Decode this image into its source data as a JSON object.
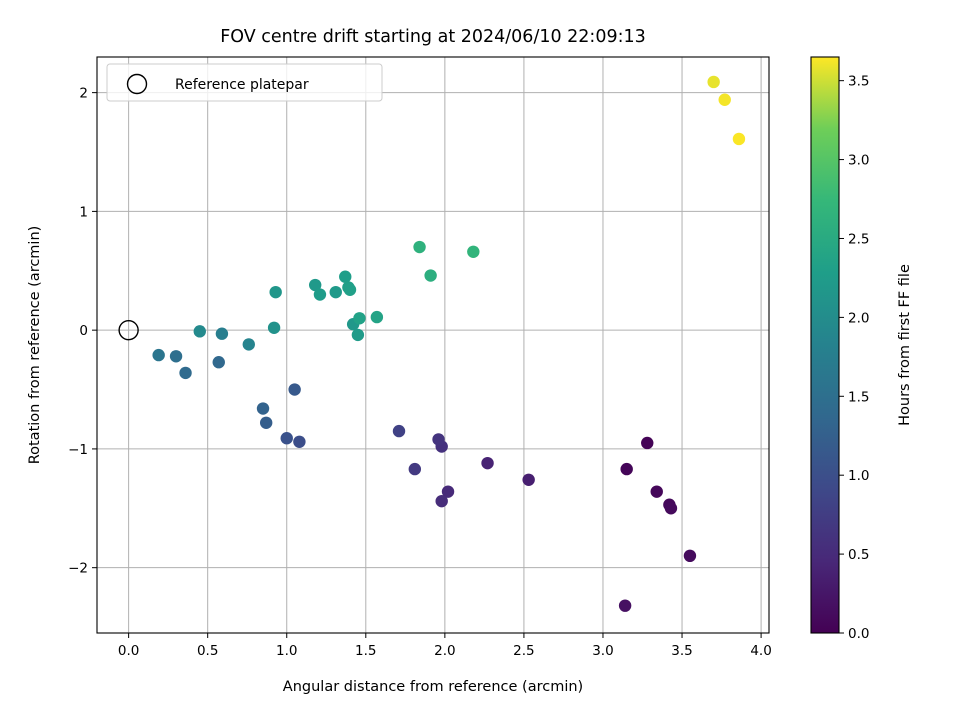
{
  "chart_data": {
    "type": "scatter",
    "title": "FOV centre drift starting at 2024/06/10 22:09:13",
    "xlabel": "Angular distance from reference (arcmin)",
    "ylabel": "Rotation from reference (arcmin)",
    "xlim": [
      -0.2,
      4.05
    ],
    "ylim": [
      -2.55,
      2.3
    ],
    "xticks": [
      0.0,
      0.5,
      1.0,
      1.5,
      2.0,
      2.5,
      3.0,
      3.5,
      4.0
    ],
    "xtick_labels": [
      "0.0",
      "0.5",
      "1.0",
      "1.5",
      "2.0",
      "2.5",
      "3.0",
      "3.5",
      "4.0"
    ],
    "yticks": [
      -2,
      -1,
      0,
      1,
      2
    ],
    "ytick_labels": [
      "−2",
      "−1",
      "0",
      "1",
      "2"
    ],
    "grid": true,
    "legend": {
      "placement": "top-left",
      "entries": [
        "Reference platepar"
      ]
    },
    "reference_point": {
      "x": 0,
      "y": 0
    },
    "colorbar": {
      "label": "Hours from first FF file",
      "range": [
        0.0,
        3.65
      ],
      "colormap": "viridis",
      "ticks": [
        0.0,
        0.5,
        1.0,
        1.5,
        2.0,
        2.5,
        3.0,
        3.5
      ],
      "tick_labels": [
        "0.0",
        "0.5",
        "1.0",
        "1.5",
        "2.0",
        "2.5",
        "3.0",
        "3.5"
      ]
    },
    "points": [
      {
        "x": 3.28,
        "y": -0.95,
        "c": 0.02
      },
      {
        "x": 3.15,
        "y": -1.17,
        "c": 0.05
      },
      {
        "x": 3.34,
        "y": -1.36,
        "c": 0.07
      },
      {
        "x": 3.42,
        "y": -1.47,
        "c": 0.09
      },
      {
        "x": 3.43,
        "y": -1.5,
        "c": 0.1
      },
      {
        "x": 3.55,
        "y": -1.9,
        "c": 0.12
      },
      {
        "x": 3.14,
        "y": -2.32,
        "c": 0.18
      },
      {
        "x": 2.53,
        "y": -1.26,
        "c": 0.35
      },
      {
        "x": 2.27,
        "y": -1.12,
        "c": 0.4
      },
      {
        "x": 2.02,
        "y": -1.36,
        "c": 0.48
      },
      {
        "x": 1.98,
        "y": -1.44,
        "c": 0.52
      },
      {
        "x": 1.98,
        "y": -0.98,
        "c": 0.58
      },
      {
        "x": 1.96,
        "y": -0.92,
        "c": 0.62
      },
      {
        "x": 1.81,
        "y": -1.17,
        "c": 0.7
      },
      {
        "x": 1.71,
        "y": -0.85,
        "c": 0.8
      },
      {
        "x": 1.08,
        "y": -0.94,
        "c": 0.98
      },
      {
        "x": 1.0,
        "y": -0.91,
        "c": 1.05
      },
      {
        "x": 1.05,
        "y": -0.5,
        "c": 1.15
      },
      {
        "x": 0.87,
        "y": -0.78,
        "c": 1.22
      },
      {
        "x": 0.85,
        "y": -0.66,
        "c": 1.3
      },
      {
        "x": 0.57,
        "y": -0.27,
        "c": 1.38
      },
      {
        "x": 0.36,
        "y": -0.36,
        "c": 1.42
      },
      {
        "x": 0.3,
        "y": -0.22,
        "c": 1.5
      },
      {
        "x": 0.19,
        "y": -0.21,
        "c": 1.6
      },
      {
        "x": 0.59,
        "y": -0.03,
        "c": 1.75
      },
      {
        "x": 0.76,
        "y": -0.12,
        "c": 1.85
      },
      {
        "x": 0.45,
        "y": -0.01,
        "c": 1.95
      },
      {
        "x": 0.92,
        "y": 0.02,
        "c": 2.08
      },
      {
        "x": 0.93,
        "y": 0.32,
        "c": 2.15
      },
      {
        "x": 1.18,
        "y": 0.38,
        "c": 2.2
      },
      {
        "x": 1.21,
        "y": 0.3,
        "c": 2.25
      },
      {
        "x": 1.31,
        "y": 0.32,
        "c": 2.22
      },
      {
        "x": 1.37,
        "y": 0.45,
        "c": 2.28
      },
      {
        "x": 1.39,
        "y": 0.36,
        "c": 2.3
      },
      {
        "x": 1.4,
        "y": 0.34,
        "c": 2.32
      },
      {
        "x": 1.42,
        "y": 0.05,
        "c": 2.18
      },
      {
        "x": 1.45,
        "y": -0.04,
        "c": 2.24
      },
      {
        "x": 1.46,
        "y": 0.1,
        "c": 2.35
      },
      {
        "x": 1.57,
        "y": 0.11,
        "c": 2.38
      },
      {
        "x": 1.84,
        "y": 0.7,
        "c": 2.62
      },
      {
        "x": 1.91,
        "y": 0.46,
        "c": 2.58
      },
      {
        "x": 2.18,
        "y": 0.66,
        "c": 2.68
      },
      {
        "x": 3.7,
        "y": 2.09,
        "c": 3.58
      },
      {
        "x": 3.77,
        "y": 1.94,
        "c": 3.62
      },
      {
        "x": 3.86,
        "y": 1.61,
        "c": 3.64
      }
    ]
  }
}
